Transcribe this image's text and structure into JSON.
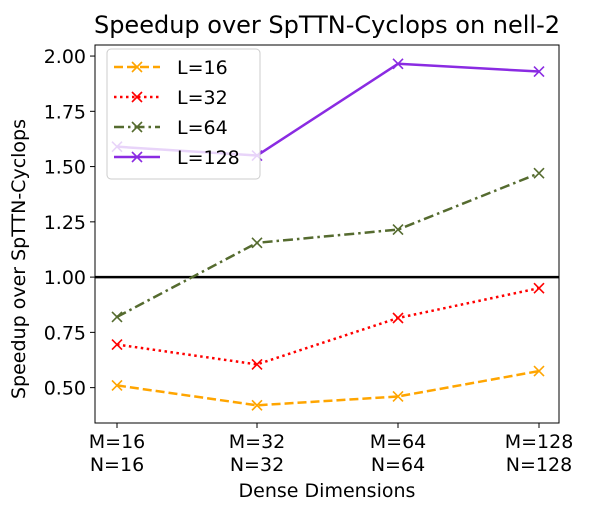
{
  "chart_data": {
    "type": "line",
    "title": "Speedup over SpTTN-Cyclops on nell-2",
    "xlabel": "Dense Dimensions",
    "ylabel": "Speedup over SpTTN-Cyclops",
    "categories": [
      [
        "M=16",
        "N=16"
      ],
      [
        "M=32",
        "N=32"
      ],
      [
        "M=64",
        "N=64"
      ],
      [
        "M=128",
        "N=128"
      ]
    ],
    "ylim": [
      0.34,
      2.05
    ],
    "yticks": [
      "0.50",
      "0.75",
      "1.00",
      "1.25",
      "1.50",
      "1.75",
      "2.00"
    ],
    "reference_line": 1.0,
    "grid": false,
    "legend_position": "top-left",
    "series": [
      {
        "name": "L=16",
        "values": [
          0.51,
          0.42,
          0.46,
          0.575
        ],
        "color": "#ffa500",
        "linestyle": "dashed",
        "marker": "x"
      },
      {
        "name": "L=32",
        "values": [
          0.695,
          0.605,
          0.815,
          0.95
        ],
        "color": "#ff0000",
        "linestyle": "dotted",
        "marker": "x"
      },
      {
        "name": "L=64",
        "values": [
          0.82,
          1.155,
          1.215,
          1.47
        ],
        "color": "#556b2f",
        "linestyle": "dashdot",
        "marker": "x"
      },
      {
        "name": "L=128",
        "values": [
          1.59,
          1.55,
          1.965,
          1.93
        ],
        "color": "#8a2be2",
        "linestyle": "solid",
        "marker": "x"
      }
    ]
  }
}
